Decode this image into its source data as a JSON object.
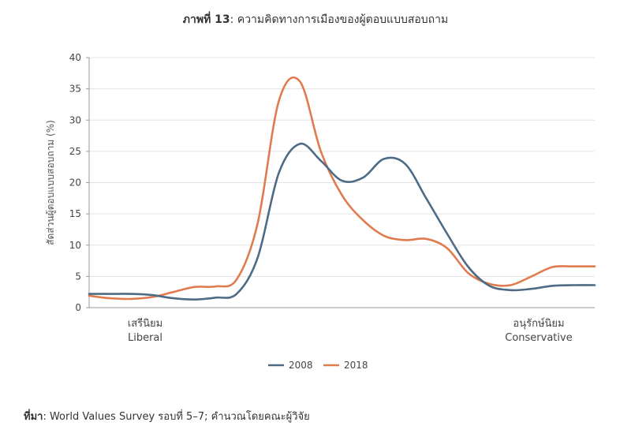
{
  "title": {
    "label": "ภาพที่ 13",
    "text": ": ความคิดทางการเมืองของผู้ตอบแบบสอบถาม"
  },
  "source": {
    "label": "ที่มา",
    "text": ": World Values Survey รอบที่ 5–7; คำนวณโดยคณะผู้วิจัย"
  },
  "chart_data": {
    "type": "line",
    "ylabel": "สัดส่วนผู้ตอบแบบสอบถาม (%)",
    "xlabel": "",
    "ylim": [
      0,
      40
    ],
    "yticks": [
      0,
      5,
      10,
      15,
      20,
      25,
      30,
      35,
      40
    ],
    "x_start_label": [
      "เสรีนิยม",
      "Liberal"
    ],
    "x_end_label": [
      "อนุรักษ์นิยม",
      "Conservative"
    ],
    "grid": true,
    "legend_position": "bottom-center",
    "x": [
      0,
      0.5,
      1,
      1.5,
      2,
      2.5,
      3,
      3.5,
      4,
      4.5,
      5,
      5.5,
      6,
      6.5,
      7,
      7.5,
      8,
      8.5,
      9,
      9.5,
      10,
      10.5,
      11,
      11.5,
      12
    ],
    "series": [
      {
        "name": "2008",
        "color": "#4e6b85",
        "values": [
          2.2,
          2.2,
          2.2,
          2.0,
          1.5,
          1.3,
          1.6,
          2.2,
          8.0,
          21.5,
          26.2,
          23.5,
          20.3,
          20.8,
          23.8,
          23.0,
          17.5,
          11.8,
          6.5,
          3.5,
          2.8,
          3.0,
          3.5,
          3.6,
          3.6
        ]
      },
      {
        "name": "2018",
        "color": "#e07b4f",
        "values": [
          1.9,
          1.5,
          1.4,
          1.7,
          2.5,
          3.3,
          3.4,
          4.5,
          13.5,
          33.0,
          36.2,
          25.0,
          18.0,
          14.0,
          11.5,
          10.8,
          11.0,
          9.5,
          5.5,
          3.8,
          3.6,
          5.0,
          6.5,
          6.6,
          6.6
        ]
      }
    ]
  }
}
